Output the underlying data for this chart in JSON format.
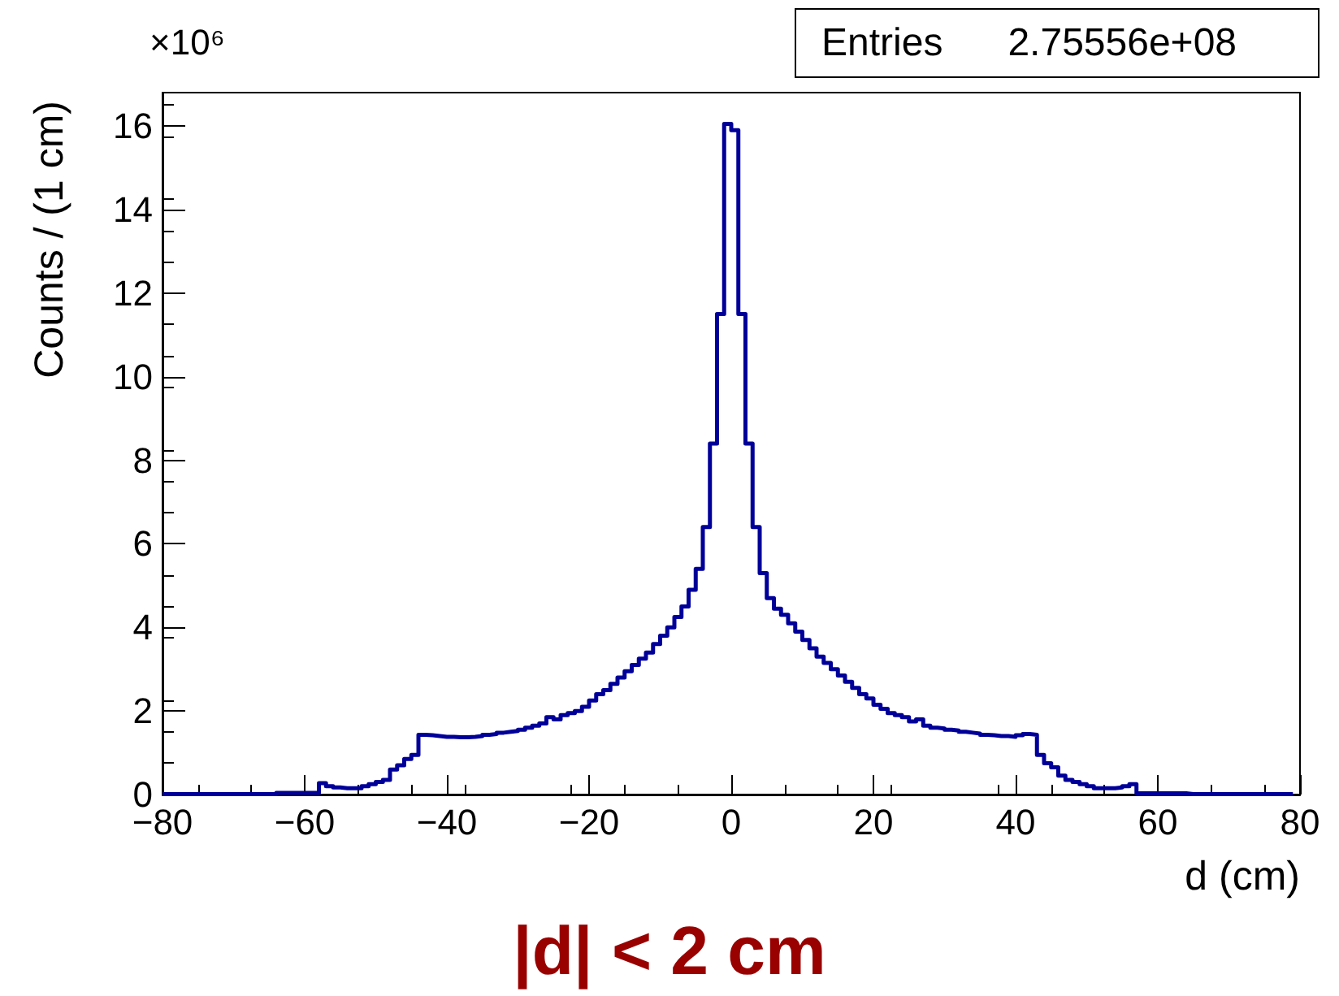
{
  "chart_data": {
    "type": "step",
    "title": "|d| < 2 cm",
    "xlabel": "d (cm)",
    "ylabel": "Counts / (1 cm)",
    "annotations": [
      "×10⁶",
      "Entries      2.75556e+08"
    ],
    "color": "#000099",
    "x": [
      -80,
      -79,
      -78,
      -77,
      -76,
      -75,
      -74,
      -73,
      -72,
      -71,
      -70,
      -69,
      -68,
      -67,
      -66,
      -65,
      -64,
      -63,
      -62,
      -61,
      -60,
      -59,
      -58,
      -57,
      -56,
      -55,
      -54,
      -53,
      -52,
      -51,
      -50,
      -49,
      -48,
      -47,
      -46,
      -45,
      -44,
      -43,
      -42,
      -41,
      -40,
      -39,
      -38,
      -37,
      -36,
      -35,
      -34,
      -33,
      -32,
      -31,
      -30,
      -29,
      -28,
      -27,
      -26,
      -25,
      -24,
      -23,
      -22,
      -21,
      -20,
      -19,
      -18,
      -17,
      -16,
      -15,
      -14,
      -13,
      -12,
      -11,
      -10,
      -9,
      -8,
      -7,
      -6,
      -5,
      -4,
      -3,
      -2,
      -1,
      0,
      1,
      2,
      3,
      4,
      5,
      6,
      7,
      8,
      9,
      10,
      11,
      12,
      13,
      14,
      15,
      16,
      17,
      18,
      19,
      20,
      21,
      22,
      23,
      24,
      25,
      26,
      27,
      28,
      29,
      30,
      31,
      32,
      33,
      34,
      35,
      36,
      37,
      38,
      39,
      40,
      41,
      42,
      43,
      44,
      45,
      46,
      47,
      48,
      49,
      50,
      51,
      52,
      53,
      54,
      55,
      56,
      57,
      58,
      59,
      60,
      61,
      62,
      63,
      64,
      65,
      66,
      67,
      68,
      69,
      70,
      71,
      72,
      73,
      74,
      75,
      76,
      77,
      78,
      79
    ],
    "values": [
      0.01,
      0.01,
      0.01,
      0.01,
      0.01,
      0.01,
      0.01,
      0.01,
      0.01,
      0.01,
      0.01,
      0.01,
      0.01,
      0.01,
      0.01,
      0.01,
      0.04,
      0.04,
      0.04,
      0.04,
      0.04,
      0.04,
      0.27,
      0.2,
      0.17,
      0.15,
      0.15,
      0.15,
      0.2,
      0.25,
      0.3,
      0.35,
      0.6,
      0.7,
      0.85,
      0.95,
      1.43,
      1.42,
      1.4,
      1.38,
      1.38,
      1.37,
      1.37,
      1.38,
      1.4,
      1.43,
      1.45,
      1.48,
      1.5,
      1.52,
      1.55,
      1.6,
      1.65,
      1.7,
      1.85,
      1.8,
      1.9,
      1.95,
      2.0,
      2.1,
      2.25,
      2.4,
      2.5,
      2.65,
      2.8,
      2.95,
      3.1,
      3.25,
      3.4,
      3.6,
      3.8,
      4.0,
      4.25,
      4.5,
      4.9,
      5.4,
      6.4,
      8.4,
      11.5,
      16.05,
      15.9,
      11.5,
      8.4,
      6.4,
      5.3,
      4.7,
      4.45,
      4.3,
      4.1,
      3.9,
      3.7,
      3.5,
      3.3,
      3.15,
      3.0,
      2.85,
      2.7,
      2.55,
      2.4,
      2.3,
      2.15,
      2.05,
      1.95,
      1.9,
      1.85,
      1.75,
      1.8,
      1.65,
      1.6,
      1.58,
      1.55,
      1.53,
      1.5,
      1.48,
      1.46,
      1.43,
      1.42,
      1.4,
      1.4,
      1.38,
      1.42,
      1.45,
      1.43,
      0.95,
      0.75,
      0.65,
      0.45,
      0.35,
      0.3,
      0.25,
      0.2,
      0.15,
      0.15,
      0.15,
      0.17,
      0.2,
      0.25,
      0.03,
      0.03,
      0.03,
      0.03,
      0.03,
      0.03,
      0.03,
      0.01,
      0.01,
      0.01,
      0.01,
      0.01,
      0.01,
      0.01,
      0.01,
      0.01,
      0.01,
      0.01,
      0.01,
      0.01,
      0.01,
      0.01,
      0.01
    ],
    "xlim": [
      -80,
      80
    ],
    "xticks": [
      -80,
      -60,
      -40,
      -20,
      0,
      20,
      40,
      60,
      80
    ],
    "ylim": [
      0,
      16.8
    ],
    "yticks": [
      0,
      2,
      4,
      6,
      8,
      10,
      12,
      14,
      16
    ],
    "grid": false,
    "marker": "none"
  }
}
